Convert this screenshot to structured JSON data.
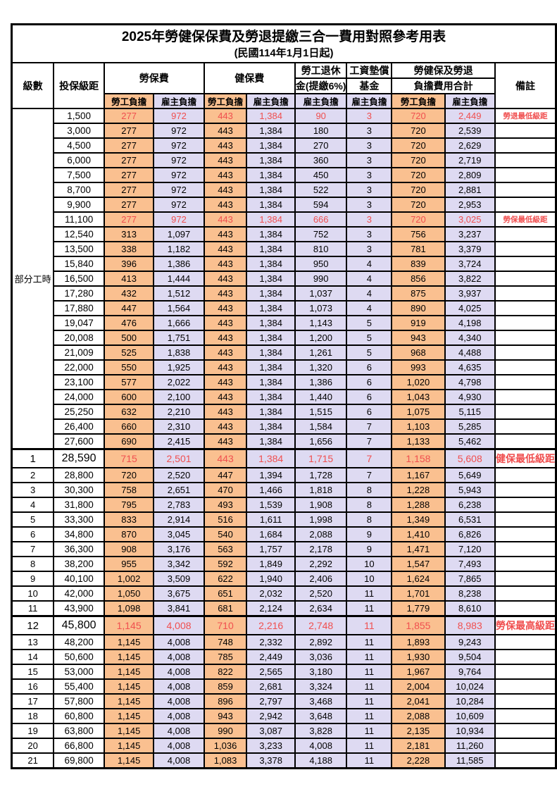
{
  "title": {
    "line1": "2025年勞健保保費及勞退提繳三合一費用對照參考用表",
    "line2": "(民國114年1月1日起)"
  },
  "colors": {
    "employee_bg": "#FAC090",
    "employer_bg": "#DEDAF2",
    "highlight_text": "#F04F4F",
    "border": "#000000"
  },
  "table": {
    "headers": {
      "level": "級數",
      "bracket": "投保級距",
      "labor": "勞保費",
      "health": "健保費",
      "pension_line1": "勞工退休",
      "pension_line2": "金(提繳6%)",
      "fund_line1": "工資墊償",
      "fund_line2": "基金",
      "total_line1": "勞健保及勞退",
      "total_line2": "負擔費用合計",
      "remark": "備註",
      "employee": "勞工負擔",
      "employer": "雇主負擔"
    },
    "part_time_label": "部分工時",
    "rows": [
      {
        "level": "",
        "bracket": "1,500",
        "values": [
          "277",
          "972",
          "443",
          "1,384",
          "90",
          "3",
          "720",
          "2,449"
        ],
        "remark": "勞退最低級距",
        "highlight": true,
        "big": false
      },
      {
        "level": "",
        "bracket": "3,000",
        "values": [
          "277",
          "972",
          "443",
          "1,384",
          "180",
          "3",
          "720",
          "2,539"
        ],
        "remark": "",
        "highlight": false,
        "big": false
      },
      {
        "level": "",
        "bracket": "4,500",
        "values": [
          "277",
          "972",
          "443",
          "1,384",
          "270",
          "3",
          "720",
          "2,629"
        ],
        "remark": "",
        "highlight": false,
        "big": false
      },
      {
        "level": "",
        "bracket": "6,000",
        "values": [
          "277",
          "972",
          "443",
          "1,384",
          "360",
          "3",
          "720",
          "2,719"
        ],
        "remark": "",
        "highlight": false,
        "big": false
      },
      {
        "level": "",
        "bracket": "7,500",
        "values": [
          "277",
          "972",
          "443",
          "1,384",
          "450",
          "3",
          "720",
          "2,809"
        ],
        "remark": "",
        "highlight": false,
        "big": false
      },
      {
        "level": "",
        "bracket": "8,700",
        "values": [
          "277",
          "972",
          "443",
          "1,384",
          "522",
          "3",
          "720",
          "2,881"
        ],
        "remark": "",
        "highlight": false,
        "big": false
      },
      {
        "level": "",
        "bracket": "9,900",
        "values": [
          "277",
          "972",
          "443",
          "1,384",
          "594",
          "3",
          "720",
          "2,953"
        ],
        "remark": "",
        "highlight": false,
        "big": false
      },
      {
        "level": "",
        "bracket": "11,100",
        "values": [
          "277",
          "972",
          "443",
          "1,384",
          "666",
          "3",
          "720",
          "3,025"
        ],
        "remark": "勞保最低級距",
        "highlight": true,
        "big": false
      },
      {
        "level": "",
        "bracket": "12,540",
        "values": [
          "313",
          "1,097",
          "443",
          "1,384",
          "752",
          "3",
          "756",
          "3,237"
        ],
        "remark": "",
        "highlight": false,
        "big": false
      },
      {
        "level": "",
        "bracket": "13,500",
        "values": [
          "338",
          "1,182",
          "443",
          "1,384",
          "810",
          "3",
          "781",
          "3,379"
        ],
        "remark": "",
        "highlight": false,
        "big": false
      },
      {
        "level": "",
        "bracket": "15,840",
        "values": [
          "396",
          "1,386",
          "443",
          "1,384",
          "950",
          "4",
          "839",
          "3,724"
        ],
        "remark": "",
        "highlight": false,
        "big": false
      },
      {
        "level": "",
        "bracket": "16,500",
        "values": [
          "413",
          "1,444",
          "443",
          "1,384",
          "990",
          "4",
          "856",
          "3,822"
        ],
        "remark": "",
        "highlight": false,
        "big": false
      },
      {
        "level": "",
        "bracket": "17,280",
        "values": [
          "432",
          "1,512",
          "443",
          "1,384",
          "1,037",
          "4",
          "875",
          "3,937"
        ],
        "remark": "",
        "highlight": false,
        "big": false
      },
      {
        "level": "",
        "bracket": "17,880",
        "values": [
          "447",
          "1,564",
          "443",
          "1,384",
          "1,073",
          "4",
          "890",
          "4,025"
        ],
        "remark": "",
        "highlight": false,
        "big": false
      },
      {
        "level": "",
        "bracket": "19,047",
        "values": [
          "476",
          "1,666",
          "443",
          "1,384",
          "1,143",
          "5",
          "919",
          "4,198"
        ],
        "remark": "",
        "highlight": false,
        "big": false
      },
      {
        "level": "",
        "bracket": "20,008",
        "values": [
          "500",
          "1,751",
          "443",
          "1,384",
          "1,200",
          "5",
          "943",
          "4,340"
        ],
        "remark": "",
        "highlight": false,
        "big": false
      },
      {
        "level": "",
        "bracket": "21,009",
        "values": [
          "525",
          "1,838",
          "443",
          "1,384",
          "1,261",
          "5",
          "968",
          "4,488"
        ],
        "remark": "",
        "highlight": false,
        "big": false
      },
      {
        "level": "",
        "bracket": "22,000",
        "values": [
          "550",
          "1,925",
          "443",
          "1,384",
          "1,320",
          "6",
          "993",
          "4,635"
        ],
        "remark": "",
        "highlight": false,
        "big": false
      },
      {
        "level": "",
        "bracket": "23,100",
        "values": [
          "577",
          "2,022",
          "443",
          "1,384",
          "1,386",
          "6",
          "1,020",
          "4,798"
        ],
        "remark": "",
        "highlight": false,
        "big": false
      },
      {
        "level": "",
        "bracket": "24,000",
        "values": [
          "600",
          "2,100",
          "443",
          "1,384",
          "1,440",
          "6",
          "1,043",
          "4,930"
        ],
        "remark": "",
        "highlight": false,
        "big": false
      },
      {
        "level": "",
        "bracket": "25,250",
        "values": [
          "632",
          "2,210",
          "443",
          "1,384",
          "1,515",
          "6",
          "1,075",
          "5,115"
        ],
        "remark": "",
        "highlight": false,
        "big": false
      },
      {
        "level": "",
        "bracket": "26,400",
        "values": [
          "660",
          "2,310",
          "443",
          "1,384",
          "1,584",
          "7",
          "1,103",
          "5,285"
        ],
        "remark": "",
        "highlight": false,
        "big": false
      },
      {
        "level": "",
        "bracket": "27,600",
        "values": [
          "690",
          "2,415",
          "443",
          "1,384",
          "1,656",
          "7",
          "1,133",
          "5,462"
        ],
        "remark": "",
        "highlight": false,
        "big": false
      },
      {
        "level": "1",
        "bracket": "28,590",
        "values": [
          "715",
          "2,501",
          "443",
          "1,384",
          "1,715",
          "7",
          "1,158",
          "5,608"
        ],
        "remark": "健保最低級距",
        "highlight": true,
        "big": true
      },
      {
        "level": "2",
        "bracket": "28,800",
        "values": [
          "720",
          "2,520",
          "447",
          "1,394",
          "1,728",
          "7",
          "1,167",
          "5,649"
        ],
        "remark": "",
        "highlight": false,
        "big": false
      },
      {
        "level": "3",
        "bracket": "30,300",
        "values": [
          "758",
          "2,651",
          "470",
          "1,466",
          "1,818",
          "8",
          "1,228",
          "5,943"
        ],
        "remark": "",
        "highlight": false,
        "big": false
      },
      {
        "level": "4",
        "bracket": "31,800",
        "values": [
          "795",
          "2,783",
          "493",
          "1,539",
          "1,908",
          "8",
          "1,288",
          "6,238"
        ],
        "remark": "",
        "highlight": false,
        "big": false
      },
      {
        "level": "5",
        "bracket": "33,300",
        "values": [
          "833",
          "2,914",
          "516",
          "1,611",
          "1,998",
          "8",
          "1,349",
          "6,531"
        ],
        "remark": "",
        "highlight": false,
        "big": false
      },
      {
        "level": "6",
        "bracket": "34,800",
        "values": [
          "870",
          "3,045",
          "540",
          "1,684",
          "2,088",
          "9",
          "1,410",
          "6,826"
        ],
        "remark": "",
        "highlight": false,
        "big": false
      },
      {
        "level": "7",
        "bracket": "36,300",
        "values": [
          "908",
          "3,176",
          "563",
          "1,757",
          "2,178",
          "9",
          "1,471",
          "7,120"
        ],
        "remark": "",
        "highlight": false,
        "big": false
      },
      {
        "level": "8",
        "bracket": "38,200",
        "values": [
          "955",
          "3,342",
          "592",
          "1,849",
          "2,292",
          "10",
          "1,547",
          "7,493"
        ],
        "remark": "",
        "highlight": false,
        "big": false
      },
      {
        "level": "9",
        "bracket": "40,100",
        "values": [
          "1,002",
          "3,509",
          "622",
          "1,940",
          "2,406",
          "10",
          "1,624",
          "7,865"
        ],
        "remark": "",
        "highlight": false,
        "big": false
      },
      {
        "level": "10",
        "bracket": "42,000",
        "values": [
          "1,050",
          "3,675",
          "651",
          "2,032",
          "2,520",
          "11",
          "1,701",
          "8,238"
        ],
        "remark": "",
        "highlight": false,
        "big": false
      },
      {
        "level": "11",
        "bracket": "43,900",
        "values": [
          "1,098",
          "3,841",
          "681",
          "2,124",
          "2,634",
          "11",
          "1,779",
          "8,610"
        ],
        "remark": "",
        "highlight": false,
        "big": false
      },
      {
        "level": "12",
        "bracket": "45,800",
        "values": [
          "1,145",
          "4,008",
          "710",
          "2,216",
          "2,748",
          "11",
          "1,855",
          "8,983"
        ],
        "remark": "勞保最高級距",
        "highlight": true,
        "big": true
      },
      {
        "level": "13",
        "bracket": "48,200",
        "values": [
          "1,145",
          "4,008",
          "748",
          "2,332",
          "2,892",
          "11",
          "1,893",
          "9,243"
        ],
        "remark": "",
        "highlight": false,
        "big": false
      },
      {
        "level": "14",
        "bracket": "50,600",
        "values": [
          "1,145",
          "4,008",
          "785",
          "2,449",
          "3,036",
          "11",
          "1,930",
          "9,504"
        ],
        "remark": "",
        "highlight": false,
        "big": false
      },
      {
        "level": "15",
        "bracket": "53,000",
        "values": [
          "1,145",
          "4,008",
          "822",
          "2,565",
          "3,180",
          "11",
          "1,967",
          "9,764"
        ],
        "remark": "",
        "highlight": false,
        "big": false
      },
      {
        "level": "16",
        "bracket": "55,400",
        "values": [
          "1,145",
          "4,008",
          "859",
          "2,681",
          "3,324",
          "11",
          "2,004",
          "10,024"
        ],
        "remark": "",
        "highlight": false,
        "big": false
      },
      {
        "level": "17",
        "bracket": "57,800",
        "values": [
          "1,145",
          "4,008",
          "896",
          "2,797",
          "3,468",
          "11",
          "2,041",
          "10,284"
        ],
        "remark": "",
        "highlight": false,
        "big": false
      },
      {
        "level": "18",
        "bracket": "60,800",
        "values": [
          "1,145",
          "4,008",
          "943",
          "2,942",
          "3,648",
          "11",
          "2,088",
          "10,609"
        ],
        "remark": "",
        "highlight": false,
        "big": false
      },
      {
        "level": "19",
        "bracket": "63,800",
        "values": [
          "1,145",
          "4,008",
          "990",
          "3,087",
          "3,828",
          "11",
          "2,135",
          "10,934"
        ],
        "remark": "",
        "highlight": false,
        "big": false
      },
      {
        "level": "20",
        "bracket": "66,800",
        "values": [
          "1,145",
          "4,008",
          "1,036",
          "3,233",
          "4,008",
          "11",
          "2,181",
          "11,260"
        ],
        "remark": "",
        "highlight": false,
        "big": false
      },
      {
        "level": "21",
        "bracket": "69,800",
        "values": [
          "1,145",
          "4,008",
          "1,083",
          "3,378",
          "4,188",
          "11",
          "2,228",
          "11,585"
        ],
        "remark": "",
        "highlight": false,
        "big": false
      }
    ]
  }
}
